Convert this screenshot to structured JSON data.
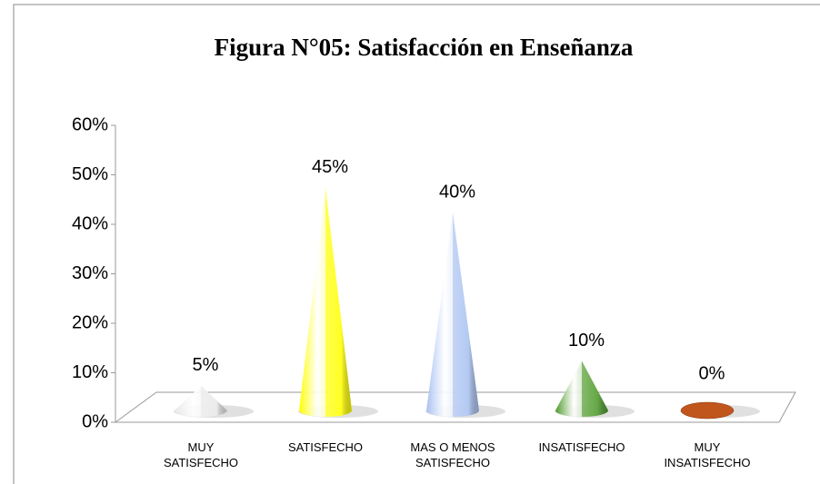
{
  "chart_data": {
    "type": "cone3d",
    "title": "Figura N°05: Satisfacción en Enseñanza",
    "categories": [
      "MUY SATISFECHO",
      "SATISFECHO",
      "MAS O MENOS SATISFECHO",
      "INSATISFECHO",
      "MUY INSATISFECHO"
    ],
    "values": [
      5,
      45,
      40,
      10,
      0
    ],
    "value_labels": [
      "5%",
      "45%",
      "40%",
      "10%",
      "0%"
    ],
    "colors": [
      "#e8e8e8",
      "#ffff00",
      "#a9c1f0",
      "#4e9a2a",
      "#c0561c"
    ],
    "ylim": [
      0,
      60
    ],
    "yticks": [
      {
        "value": 0,
        "label": "0%"
      },
      {
        "value": 10,
        "label": "10%"
      },
      {
        "value": 20,
        "label": "20%"
      },
      {
        "value": 30,
        "label": "30%"
      },
      {
        "value": 40,
        "label": "40%"
      },
      {
        "value": 50,
        "label": "50%"
      },
      {
        "value": 60,
        "label": "60%"
      }
    ]
  }
}
